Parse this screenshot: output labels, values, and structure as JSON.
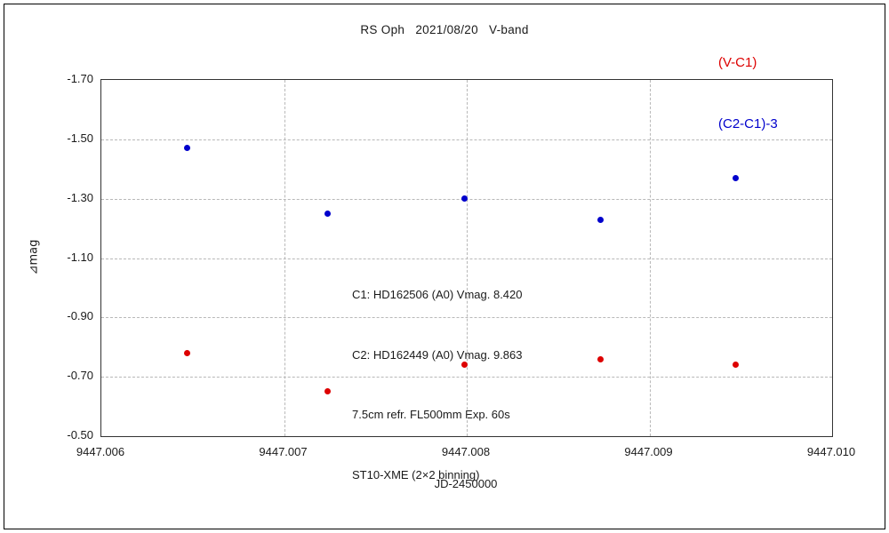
{
  "header": {
    "title": "RS Oph   2021/08/20   V-band",
    "legend": [
      {
        "label": "(V-C1)",
        "color": "#dd0000"
      },
      {
        "label": "(C2-C1)-3",
        "color": "#0000cc"
      }
    ]
  },
  "chart_data": {
    "type": "scatter",
    "title": "RS Oph 2021/08/20 V-band",
    "xlabel": "JD-2450000",
    "ylabel": "⊿mag",
    "xlim": [
      9447.006,
      9447.01
    ],
    "ylim_top": -1.7,
    "ylim_bottom": -0.5,
    "y_axis_inverted": true,
    "grid": "dashed",
    "x_ticks": [
      9447.006,
      9447.007,
      9447.008,
      9447.009,
      9447.01
    ],
    "x_tick_labels": [
      "9447.006",
      "9447.007",
      "9447.008",
      "9447.009",
      "9447.010"
    ],
    "y_ticks": [
      -1.7,
      -1.5,
      -1.3,
      -1.1,
      -0.9,
      -0.7,
      -0.5
    ],
    "y_tick_labels": [
      "-1.70",
      "-1.50",
      "-1.30",
      "-1.10",
      "-0.90",
      "-0.70",
      "-0.50"
    ],
    "series": [
      {
        "name": "(V-C1)",
        "color": "#dd0000",
        "points": [
          [
            9447.00647,
            -0.78
          ],
          [
            9447.00724,
            -0.65
          ],
          [
            9447.00799,
            -0.74
          ],
          [
            9447.00873,
            -0.76
          ],
          [
            9447.00947,
            -0.74
          ]
        ]
      },
      {
        "name": "(C2-C1)-3",
        "color": "#0000cc",
        "points": [
          [
            9447.00647,
            -1.47
          ],
          [
            9447.00724,
            -1.25
          ],
          [
            9447.00799,
            -1.3
          ],
          [
            9447.00873,
            -1.23
          ],
          [
            9447.00947,
            -1.37
          ]
        ]
      }
    ],
    "annotation_lines": [
      "C1: HD162506 (A0) Vmag. 8.420",
      "C2: HD162449 (A0) Vmag. 9.863",
      "7.5cm refr. FL500mm Exp. 60s",
      "ST10-XME (2×2 binning)"
    ]
  }
}
